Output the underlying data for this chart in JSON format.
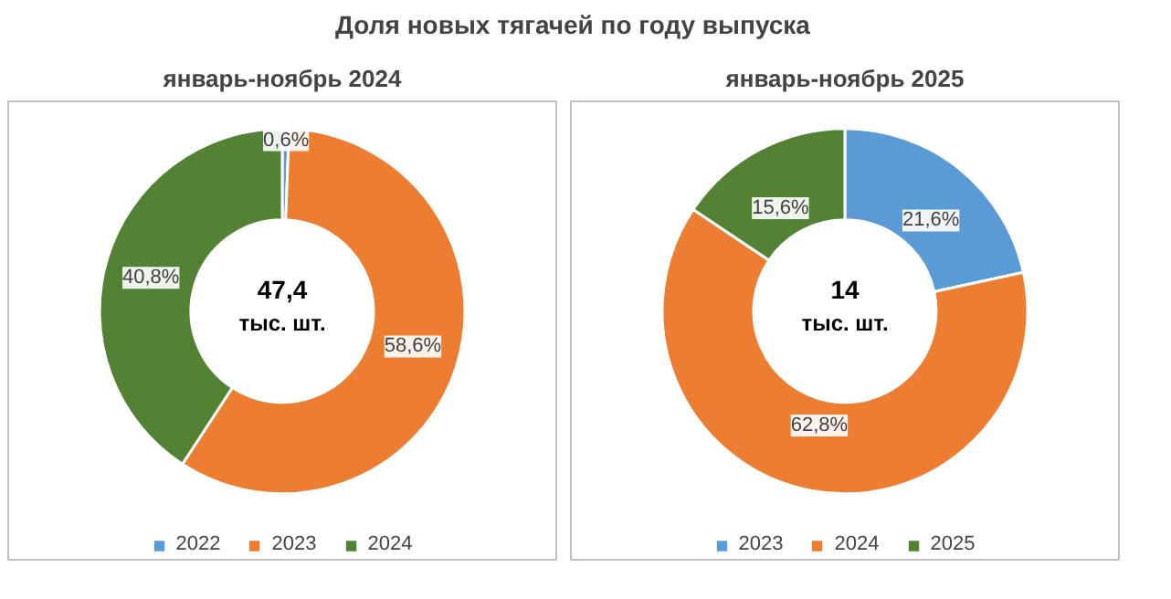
{
  "chart_data": [
    {
      "type": "donut",
      "title": "Доля новых тягачей по году выпуска",
      "subtitle": "январь-ноябрь 2024",
      "categories": [
        "2022",
        "2023",
        "2024"
      ],
      "values": [
        0.6,
        58.6,
        40.8
      ],
      "colors": [
        "#5b9bd5",
        "#ed7d31",
        "#548235"
      ],
      "value_labels": [
        "0,6%",
        "58,6%",
        "40,8%"
      ],
      "annotations": [
        "47,4",
        "тыс. шт."
      ],
      "legend": "bottom"
    },
    {
      "type": "donut",
      "subtitle": "январь-ноябрь 2025",
      "categories": [
        "2023",
        "2024",
        "2025"
      ],
      "values": [
        21.6,
        62.8,
        15.6
      ],
      "colors": [
        "#5b9bd5",
        "#ed7d31",
        "#548235"
      ],
      "value_labels": [
        "21,6%",
        "62,8%",
        "15,6%"
      ],
      "annotations": [
        "14",
        "тыс. шт."
      ],
      "legend": "bottom"
    }
  ]
}
